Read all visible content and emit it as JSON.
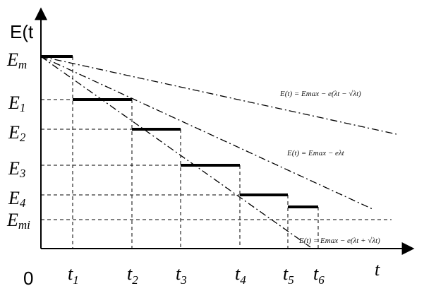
{
  "y_axis_label": "E(t",
  "x_axis_label": "t",
  "origin_label": "0",
  "level_labels": [
    {
      "id": "Em",
      "main": "E",
      "sub": "m"
    },
    {
      "id": "E1",
      "main": "E",
      "sub": "1"
    },
    {
      "id": "E2",
      "main": "E",
      "sub": "2"
    },
    {
      "id": "E3",
      "main": "E",
      "sub": "3"
    },
    {
      "id": "E4",
      "main": "E",
      "sub": "4"
    },
    {
      "id": "Emi",
      "main": "E",
      "sub": "mi"
    }
  ],
  "time_labels": [
    {
      "id": "t1",
      "main": "t",
      "sub": "1"
    },
    {
      "id": "t2",
      "main": "t",
      "sub": "2"
    },
    {
      "id": "t3",
      "main": "t",
      "sub": "3"
    },
    {
      "id": "t4",
      "main": "t",
      "sub": "4"
    },
    {
      "id": "t5",
      "main": "t",
      "sub": "5"
    },
    {
      "id": "t6",
      "main": "t",
      "sub": "6"
    }
  ],
  "formulas": [
    {
      "id": "upper",
      "text": "E(t) = Emax − e(λt − √λt)"
    },
    {
      "id": "middle",
      "text": "E(t) = Emax − eλt"
    },
    {
      "id": "lower",
      "text": "E(t) = Emax − e(λt + √λt)"
    }
  ]
}
